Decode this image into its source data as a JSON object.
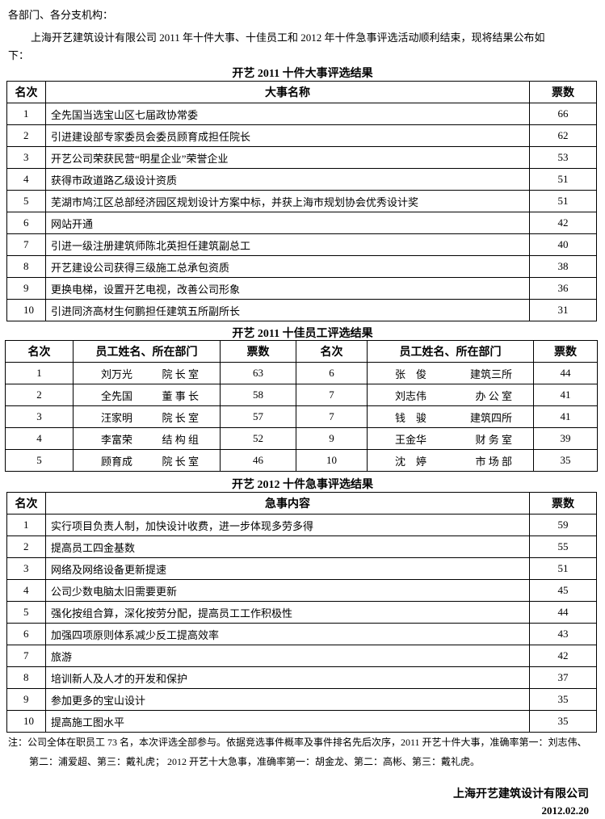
{
  "salutation": "各部门、各分支机构：",
  "intro_line1": "上海开艺建筑设计有限公司 2011 年十件大事、十佳员工和 2012 年十件急事评选活动顺利结束，现将结果公布如",
  "intro_line2": "下：",
  "events": {
    "title": "开艺 2011 十件大事评选结果",
    "headers": [
      "名次",
      "大事名称",
      "票数"
    ],
    "rows": [
      [
        "1",
        "全先国当选宝山区七届政协常委",
        "66"
      ],
      [
        "2",
        "引进建设部专家委员会委员顾育成担任院长",
        "62"
      ],
      [
        "3",
        "开艺公司荣获民营“明星企业”荣誉企业",
        "53"
      ],
      [
        "4",
        "获得市政道路乙级设计资质",
        "51"
      ],
      [
        "5",
        "芜湖市鸠江区总部经济园区规划设计方案中标，并获上海市规划协会优秀设计奖",
        "51"
      ],
      [
        "6",
        "网站开通",
        "42"
      ],
      [
        "7",
        "引进一级注册建筑师陈北英担任建筑副总工",
        "40"
      ],
      [
        "8",
        "开艺建设公司获得三级施工总承包资质",
        "38"
      ],
      [
        "9",
        "更换电梯，设置开艺电视，改善公司形象",
        "36"
      ],
      [
        "10",
        "引进同济高材生何鹏担任建筑五所副所长",
        "31"
      ]
    ]
  },
  "employees": {
    "title": "开艺 2011 十佳员工评选结果",
    "headers": [
      "名次",
      "员工姓名、所在部门",
      "票数",
      "名次",
      "员工姓名、所在部门",
      "票数"
    ],
    "rows": [
      [
        "1",
        "刘万光",
        "院 长 室",
        "63",
        "6",
        "张　俊",
        "建筑三所",
        "44"
      ],
      [
        "2",
        "全先国",
        "董 事 长",
        "58",
        "7",
        "刘志伟",
        "办 公 室",
        "41"
      ],
      [
        "3",
        "汪家明",
        "院 长 室",
        "57",
        "7",
        "钱　骏",
        "建筑四所",
        "41"
      ],
      [
        "4",
        "李富荣",
        "结 构 组",
        "52",
        "9",
        "王金华",
        "财 务 室",
        "39"
      ],
      [
        "5",
        "顾育成",
        "院 长 室",
        "46",
        "10",
        "沈　婷",
        "市 场 部",
        "35"
      ]
    ]
  },
  "urgent": {
    "title": "开艺 2012 十件急事评选结果",
    "headers": [
      "名次",
      "急事内容",
      "票数"
    ],
    "rows": [
      [
        "1",
        "实行项目负责人制，加快设计收费，进一步体现多劳多得",
        "59"
      ],
      [
        "2",
        "提高员工四金基数",
        "55"
      ],
      [
        "3",
        "网络及网络设备更新提速",
        "51"
      ],
      [
        "4",
        "公司少数电脑太旧需要更新",
        "45"
      ],
      [
        "5",
        "强化按组合算，深化按劳分配，提高员工工作积极性",
        "44"
      ],
      [
        "6",
        "加强四项原则体系减少反工提高效率",
        "43"
      ],
      [
        "7",
        "旅游",
        "42"
      ],
      [
        "8",
        "培训新人及人才的开发和保护",
        "37"
      ],
      [
        "9",
        "参加更多的宝山设计",
        "35"
      ],
      [
        "10",
        "提高施工图水平",
        "35"
      ]
    ]
  },
  "note_line1": "注：公司全体在职员工 73 名，本次评选全部参与。依据竞选事件概率及事件排名先后次序，2011 开艺十件大事，准确率第一：刘志伟、",
  "note_line2": "第二：浦爱超、第三：戴礼虎； 2012 开艺十大急事，准确率第一：胡金龙、第二：高彬、第三：戴礼虎。",
  "company": "上海开艺建筑设计有限公司",
  "date": "2012.02.20"
}
